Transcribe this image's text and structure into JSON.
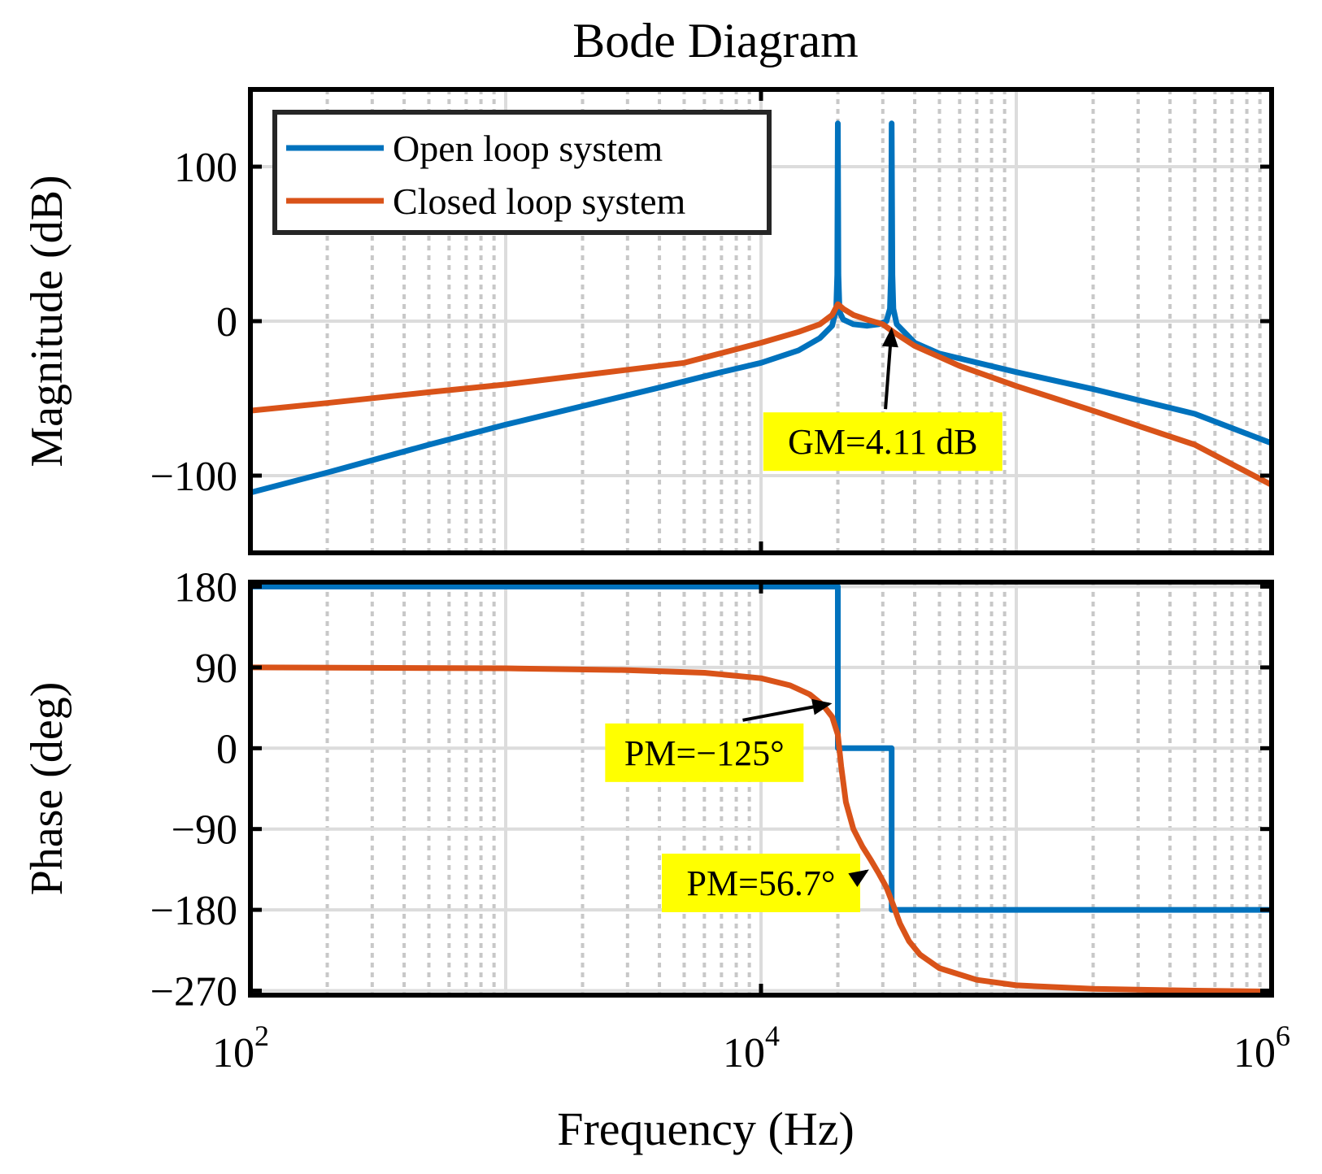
{
  "chart_data": {
    "type": "line",
    "title": "Bode Diagram",
    "xlabel": "Frequency  (Hz)",
    "x_scale": "log",
    "xlim": [
      100,
      1000000
    ],
    "x_ticks": [
      {
        "value": 100,
        "base": "10",
        "exp": "2"
      },
      {
        "value": 10000,
        "base": "10",
        "exp": "4"
      },
      {
        "value": 1000000,
        "base": "10",
        "exp": "6"
      }
    ],
    "grid": true,
    "legend": {
      "position": "top-left",
      "entries": [
        {
          "label": "Open loop system",
          "color": "#0072BD"
        },
        {
          "label": "Closed loop system",
          "color": "#D95319"
        }
      ]
    },
    "panels": [
      {
        "name": "magnitude",
        "ylabel": "Magnitude (dB)",
        "ylim": [
          -150,
          150
        ],
        "y_ticks": [
          {
            "value": 100,
            "label": "100"
          },
          {
            "value": 0,
            "label": "0"
          },
          {
            "value": -100,
            "label": "−100"
          }
        ],
        "series": [
          {
            "name": "Open loop system",
            "color": "#0072BD",
            "points": [
              [
                100,
                -111
              ],
              [
                200,
                -98
              ],
              [
                500,
                -80
              ],
              [
                1000,
                -67
              ],
              [
                2000,
                -55
              ],
              [
                4000,
                -43
              ],
              [
                7000,
                -33
              ],
              [
                10000,
                -27
              ],
              [
                14000,
                -19
              ],
              [
                17000,
                -11
              ],
              [
                19000,
                -3
              ],
              [
                19700,
                8
              ],
              [
                19900,
                30
              ],
              [
                20000,
                128
              ],
              [
                20100,
                30
              ],
              [
                20300,
                6
              ],
              [
                21000,
                1
              ],
              [
                23000,
                -2
              ],
              [
                26000,
                -3
              ],
              [
                29000,
                -2
              ],
              [
                31000,
                0
              ],
              [
                32000,
                8
              ],
              [
                32300,
                30
              ],
              [
                32500,
                128
              ],
              [
                32700,
                30
              ],
              [
                33000,
                8
              ],
              [
                34000,
                -2
              ],
              [
                40000,
                -14
              ],
              [
                50000,
                -21
              ],
              [
                100000,
                -33
              ],
              [
                200000,
                -44
              ],
              [
                500000,
                -60
              ],
              [
                1000000,
                -79
              ]
            ]
          },
          {
            "name": "Closed loop system",
            "color": "#D95319",
            "points": [
              [
                100,
                -58
              ],
              [
                200,
                -53
              ],
              [
                500,
                -46
              ],
              [
                1000,
                -41
              ],
              [
                2000,
                -35
              ],
              [
                5000,
                -27
              ],
              [
                10000,
                -14
              ],
              [
                14000,
                -7
              ],
              [
                17000,
                -2
              ],
              [
                19000,
                4
              ],
              [
                20000,
                11
              ],
              [
                21000,
                8
              ],
              [
                23000,
                4
              ],
              [
                26000,
                1
              ],
              [
                30000,
                -2
              ],
              [
                33000,
                -7
              ],
              [
                40000,
                -16
              ],
              [
                60000,
                -29
              ],
              [
                100000,
                -42
              ],
              [
                200000,
                -58
              ],
              [
                500000,
                -80
              ],
              [
                1000000,
                -106
              ]
            ]
          }
        ],
        "annotations": [
          {
            "text": "GM=4.11 dB",
            "target_x": 32500,
            "target_y": -4,
            "label_x": 30000,
            "label_y": -78
          }
        ]
      },
      {
        "name": "phase",
        "ylabel": "Phase (deg)",
        "ylim": [
          -275,
          185
        ],
        "y_ticks": [
          {
            "value": 180,
            "label": "180"
          },
          {
            "value": 90,
            "label": "90"
          },
          {
            "value": 0,
            "label": "0"
          },
          {
            "value": -90,
            "label": "−90"
          },
          {
            "value": -180,
            "label": "−180"
          },
          {
            "value": -270,
            "label": "−270"
          }
        ],
        "series": [
          {
            "name": "Open loop system",
            "color": "#0072BD",
            "points": [
              [
                100,
                180
              ],
              [
                20000,
                180
              ],
              [
                20001,
                0
              ],
              [
                32500,
                0
              ],
              [
                32501,
                -180
              ],
              [
                1000000,
                -180
              ]
            ]
          },
          {
            "name": "Closed loop system",
            "color": "#D95319",
            "points": [
              [
                100,
                90
              ],
              [
                1000,
                89
              ],
              [
                3000,
                87
              ],
              [
                6000,
                84
              ],
              [
                10000,
                78
              ],
              [
                13000,
                70
              ],
              [
                15500,
                60
              ],
              [
                17500,
                48
              ],
              [
                19000,
                35
              ],
              [
                20000,
                15
              ],
              [
                20600,
                -20
              ],
              [
                21500,
                -60
              ],
              [
                23000,
                -90
              ],
              [
                25000,
                -110
              ],
              [
                27000,
                -125
              ],
              [
                29000,
                -140
              ],
              [
                31000,
                -155
              ],
              [
                33000,
                -175
              ],
              [
                35000,
                -195
              ],
              [
                38000,
                -215
              ],
              [
                42000,
                -230
              ],
              [
                50000,
                -245
              ],
              [
                70000,
                -258
              ],
              [
                100000,
                -264
              ],
              [
                200000,
                -268
              ],
              [
                500000,
                -270
              ],
              [
                1000000,
                -271
              ]
            ]
          }
        ],
        "annotations": [
          {
            "text": "PM=−125°",
            "target_x": 19000,
            "target_y": 50,
            "label_x": 6000,
            "label_y": -5
          },
          {
            "text": "PM=56.7°",
            "target_x": 26500,
            "target_y": -135,
            "label_x": 10000,
            "label_y": -150
          }
        ]
      }
    ]
  }
}
